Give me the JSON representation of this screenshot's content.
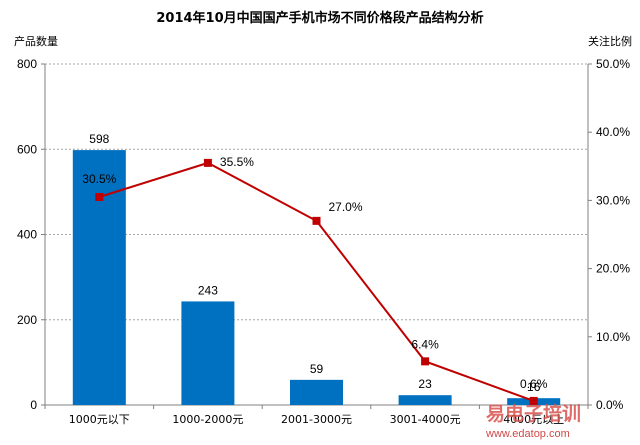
{
  "chart_data": {
    "type": "bar+line",
    "title": "2014年10月中国国产手机市场不同价格段产品结构分析",
    "ylabel_left": "产品数量",
    "ylabel_right": "关注比例",
    "categories": [
      "1000元以下",
      "1000-2000元",
      "2001-3000元",
      "3001-4000元",
      "4000元以上"
    ],
    "series": [
      {
        "name": "产品数量",
        "type": "bar",
        "axis": "left",
        "values": [
          598,
          243,
          59,
          23,
          16
        ],
        "labels": [
          "598",
          "243",
          "59",
          "23",
          "16"
        ]
      },
      {
        "name": "关注比例",
        "type": "line",
        "axis": "right",
        "values": [
          30.5,
          35.5,
          27.0,
          6.4,
          0.6
        ],
        "labels": [
          "30.5%",
          "35.5%",
          "27.0%",
          "6.4%",
          "0.6%"
        ]
      }
    ],
    "ylim_left": [
      0,
      800
    ],
    "ylim_right": [
      0,
      50
    ],
    "yticks_left": [
      0,
      200,
      400,
      600,
      800
    ],
    "yticks_left_labels": [
      "0",
      "200",
      "400",
      "600",
      "800"
    ],
    "yticks_right": [
      0,
      10,
      20,
      30,
      40,
      50
    ],
    "yticks_right_labels": [
      "0.0%",
      "10.0%",
      "20.0%",
      "30.0%",
      "40.0%",
      "50.0%"
    ],
    "grid": true,
    "bar_color": "#0070c0",
    "line_color": "#c00000"
  },
  "watermark": {
    "text": "易电子培训",
    "url": "www.edatop.com"
  }
}
